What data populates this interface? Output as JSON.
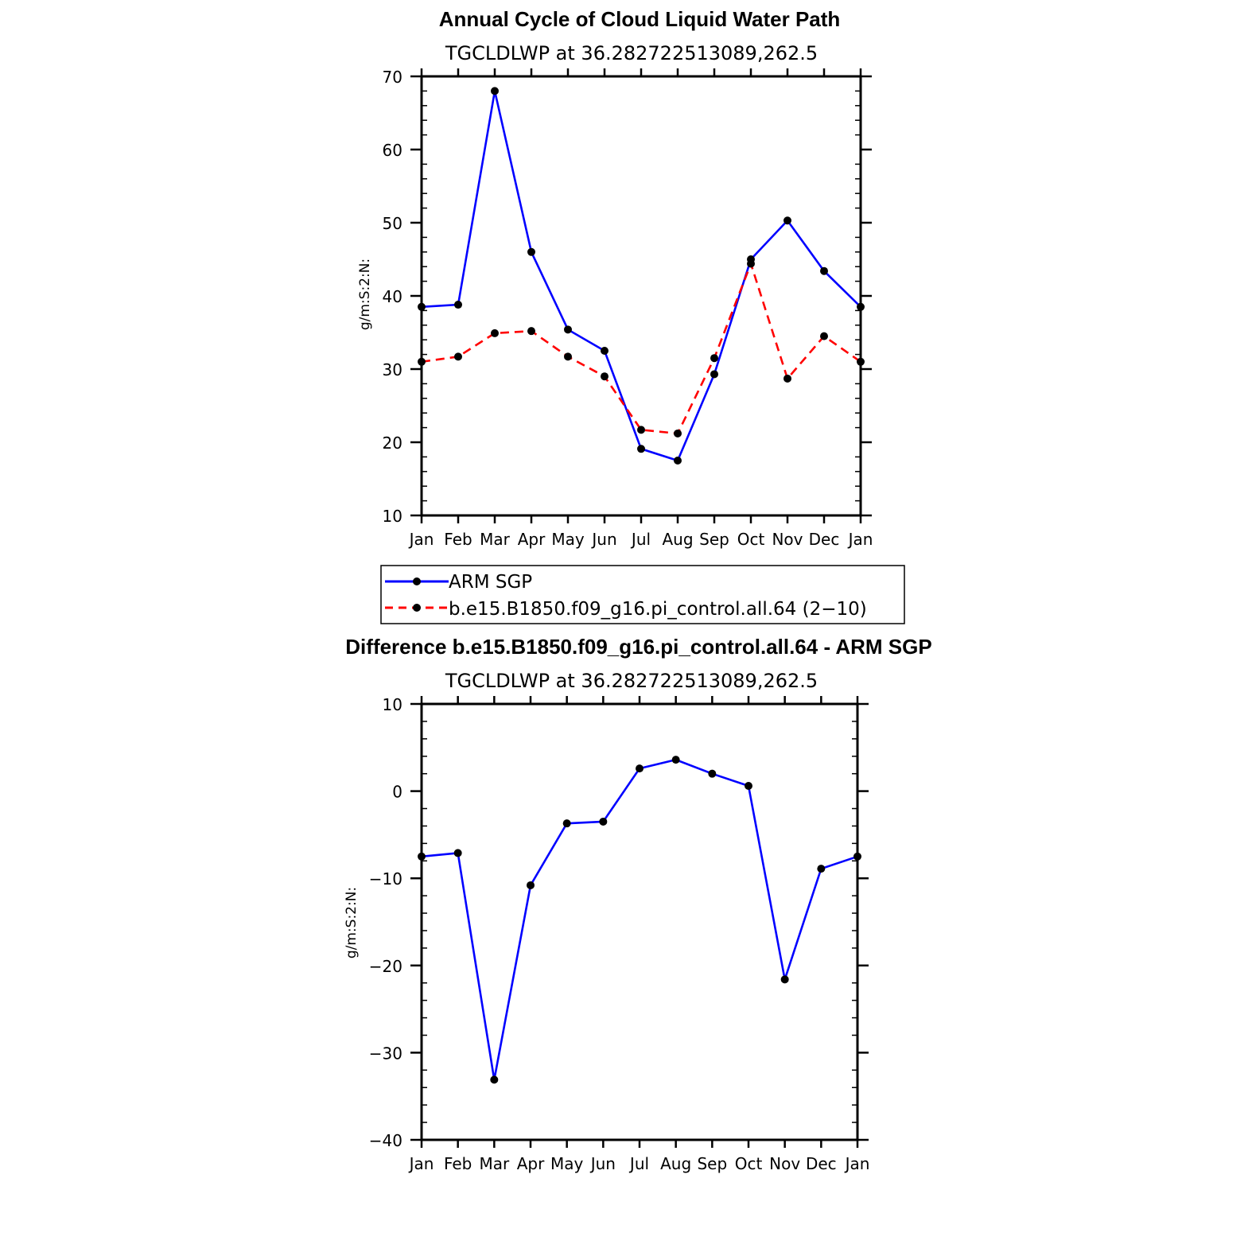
{
  "chart_data": [
    {
      "type": "line",
      "title": "Annual Cycle of Cloud Liquid Water Path",
      "subtitle": "TGCLDLWP  at  36.282722513089,262.5",
      "ylabel": "g/m:S:2:N:",
      "xlabel": "",
      "ylim": [
        10,
        70
      ],
      "yticks": [
        "10",
        "20",
        "30",
        "40",
        "50",
        "60",
        "70"
      ],
      "categories": [
        "Jan",
        "Feb",
        "Mar",
        "Apr",
        "May",
        "Jun",
        "Jul",
        "Aug",
        "Sep",
        "Oct",
        "Nov",
        "Dec",
        "Jan"
      ],
      "series": [
        {
          "name": "ARM  SGP",
          "color": "#0000ff",
          "dash": "solid",
          "values": [
            38.5,
            38.8,
            68.0,
            46.0,
            35.4,
            32.5,
            19.1,
            17.5,
            29.3,
            45.0,
            50.3,
            43.4,
            38.5
          ]
        },
        {
          "name": "b.e15.B1850.f09_g16.pi_control.all.64  (2−10)",
          "color": "#ff0000",
          "dash": "dashed",
          "values": [
            31.0,
            31.7,
            34.9,
            35.2,
            31.7,
            29.0,
            21.7,
            21.2,
            31.5,
            44.4,
            28.7,
            34.5,
            31.0
          ]
        }
      ],
      "grid": false,
      "legend_position": "below"
    },
    {
      "type": "line",
      "title": "Difference b.e15.B1850.f09_g16.pi_control.all.64 - ARM SGP",
      "subtitle": "TGCLDLWP  at  36.282722513089,262.5",
      "ylabel": "g/m:S:2:N:",
      "xlabel": "",
      "ylim": [
        -40,
        10
      ],
      "yticks": [
        "−40",
        "−30",
        "−20",
        "−10",
        "0",
        "10"
      ],
      "categories": [
        "Jan",
        "Feb",
        "Mar",
        "Apr",
        "May",
        "Jun",
        "Jul",
        "Aug",
        "Sep",
        "Oct",
        "Nov",
        "Dec",
        "Jan"
      ],
      "series": [
        {
          "color": "#0000ff",
          "dash": "solid",
          "values": [
            -7.5,
            -7.1,
            -33.1,
            -10.8,
            -3.7,
            -3.5,
            2.6,
            3.6,
            2.0,
            0.6,
            -21.6,
            -8.9,
            -7.5
          ]
        }
      ],
      "grid": false
    }
  ]
}
